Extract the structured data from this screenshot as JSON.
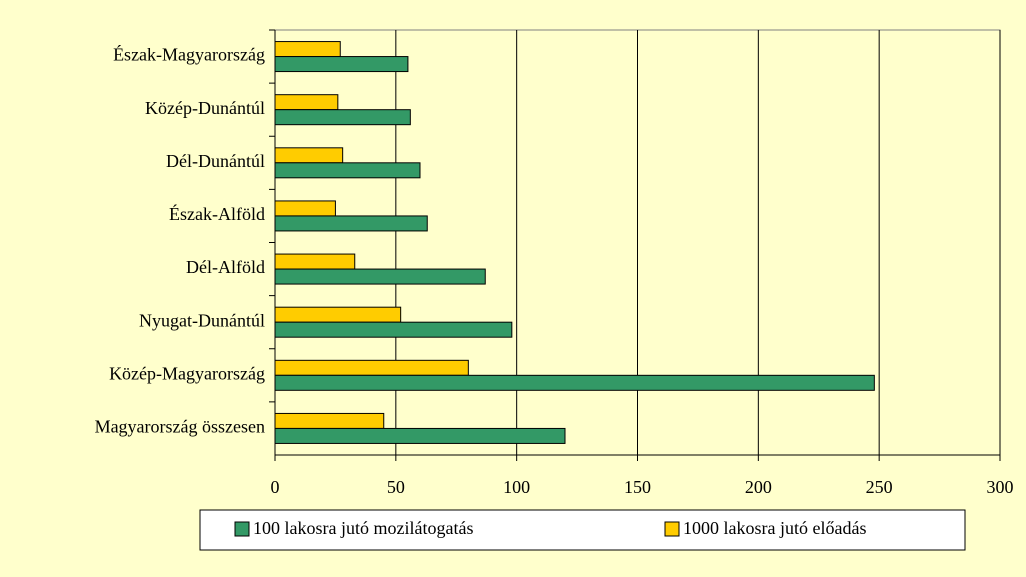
{
  "chart_data": {
    "type": "bar",
    "orientation": "horizontal",
    "categories": [
      "Észak-Magyarország",
      "Közép-Dunántúl",
      "Dél-Dunántúl",
      "Észak-Alföld",
      "Dél-Alföld",
      "Nyugat-Dunántúl",
      "Közép-Magyarország",
      "Magyarország összesen"
    ],
    "series": [
      {
        "name": "1000 lakosra jutó előadás",
        "color": "#ffcc00",
        "values": [
          27,
          26,
          28,
          25,
          33,
          52,
          80,
          45
        ]
      },
      {
        "name": "100 lakosra jutó mozilátogatás",
        "color": "#339966",
        "values": [
          55,
          56,
          60,
          63,
          87,
          98,
          248,
          120
        ]
      }
    ],
    "xlim": [
      0,
      300
    ],
    "xticks": [
      0,
      50,
      100,
      150,
      200,
      250,
      300
    ],
    "grid": true,
    "legend": "bottom"
  }
}
